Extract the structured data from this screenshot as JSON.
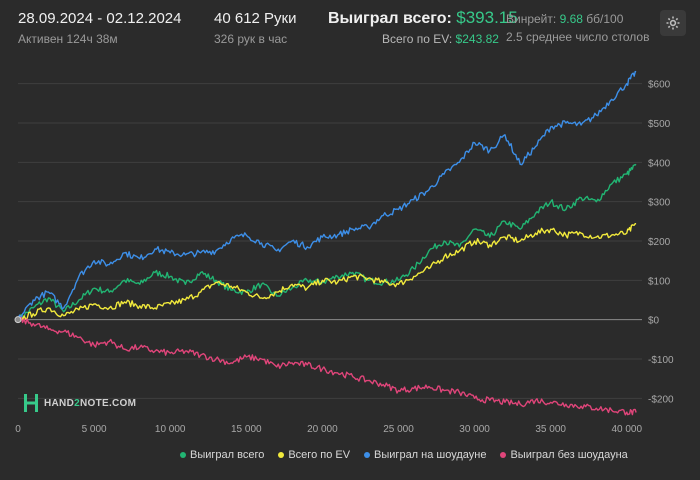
{
  "header": {
    "date_range": "28.09.2024 - 02.12.2024",
    "active": "Активен 124ч 38м",
    "hands": "40 612 Руки",
    "hands_per_hour": "326 рук в час",
    "won_label": "Выиграл всего:",
    "won_value": "$393.15",
    "ev_label": "Всего по EV:",
    "ev_value": "$243.82",
    "winrate_label": "Винрейт:",
    "winrate_value": "9.68",
    "winrate_unit": "бб/100",
    "tables": "2.5 среднее число столов"
  },
  "logo": {
    "text_a": "HAND",
    "text_b": "2",
    "text_c": "NOTE.COM"
  },
  "colors": {
    "won": "#22b573",
    "ev": "#f2ea3c",
    "showdown": "#3d8fe8",
    "noshowdown": "#e0457a",
    "accent": "#37c98a"
  },
  "icons": {
    "settings": "gear-icon"
  },
  "chart_data": {
    "type": "line",
    "xlim": [
      0,
      41000
    ],
    "ylim": [
      -250,
      650
    ],
    "x_ticks": [
      0,
      5000,
      10000,
      15000,
      20000,
      25000,
      30000,
      35000,
      40000
    ],
    "x_tick_labels": [
      "0",
      "5 000",
      "10 000",
      "15 000",
      "20 000",
      "25 000",
      "30 000",
      "35 000",
      "40 000"
    ],
    "y_ticks": [
      -200,
      -100,
      0,
      100,
      200,
      300,
      400,
      500,
      600
    ],
    "y_tick_labels": [
      "-$200",
      "-$100",
      "$0",
      "$100",
      "$200",
      "$300",
      "$400",
      "$500",
      "$600"
    ],
    "grid": "horizontal",
    "legend_position": "bottom",
    "x": [
      0,
      1000,
      2000,
      3000,
      4000,
      5000,
      6000,
      7000,
      8000,
      9000,
      10000,
      11000,
      12000,
      13000,
      14000,
      15000,
      16000,
      17000,
      18000,
      19000,
      20000,
      21000,
      22000,
      23000,
      24000,
      25000,
      26000,
      27000,
      28000,
      29000,
      30000,
      31000,
      32000,
      33000,
      34000,
      35000,
      36000,
      37000,
      38000,
      39000,
      40000,
      40612
    ],
    "series": [
      {
        "name": "Выиграл всего",
        "color": "#22b573",
        "values": [
          0,
          30,
          55,
          20,
          50,
          80,
          70,
          100,
          90,
          120,
          110,
          90,
          120,
          100,
          75,
          70,
          90,
          60,
          80,
          100,
          95,
          110,
          120,
          100,
          95,
          100,
          130,
          175,
          200,
          185,
          230,
          210,
          250,
          230,
          270,
          300,
          280,
          310,
          300,
          345,
          370,
          393
        ]
      },
      {
        "name": "Всего по EV",
        "color": "#f2ea3c",
        "values": [
          0,
          15,
          30,
          10,
          25,
          40,
          30,
          45,
          35,
          30,
          40,
          50,
          70,
          95,
          85,
          70,
          55,
          70,
          90,
          80,
          100,
          95,
          110,
          105,
          95,
          90,
          110,
          130,
          160,
          175,
          200,
          190,
          210,
          200,
          220,
          230,
          215,
          220,
          210,
          215,
          220,
          244
        ]
      },
      {
        "name": "Выиграл на шоудауне",
        "color": "#3d8fe8",
        "values": [
          0,
          50,
          70,
          30,
          110,
          150,
          140,
          170,
          155,
          180,
          170,
          165,
          170,
          175,
          205,
          215,
          195,
          175,
          200,
          185,
          210,
          215,
          230,
          235,
          265,
          280,
          305,
          330,
          370,
          400,
          450,
          430,
          470,
          395,
          440,
          490,
          500,
          495,
          520,
          560,
          600,
          630
        ]
      },
      {
        "name": "Выиграл без шоудауна",
        "color": "#e0457a",
        "values": [
          0,
          -10,
          -25,
          -30,
          -45,
          -65,
          -55,
          -75,
          -70,
          -80,
          -85,
          -80,
          -90,
          -100,
          -110,
          -95,
          -100,
          -120,
          -110,
          -115,
          -125,
          -135,
          -145,
          -155,
          -165,
          -180,
          -175,
          -170,
          -180,
          -185,
          -200,
          -205,
          -210,
          -215,
          -205,
          -210,
          -215,
          -220,
          -225,
          -230,
          -235,
          -236
        ]
      }
    ]
  }
}
